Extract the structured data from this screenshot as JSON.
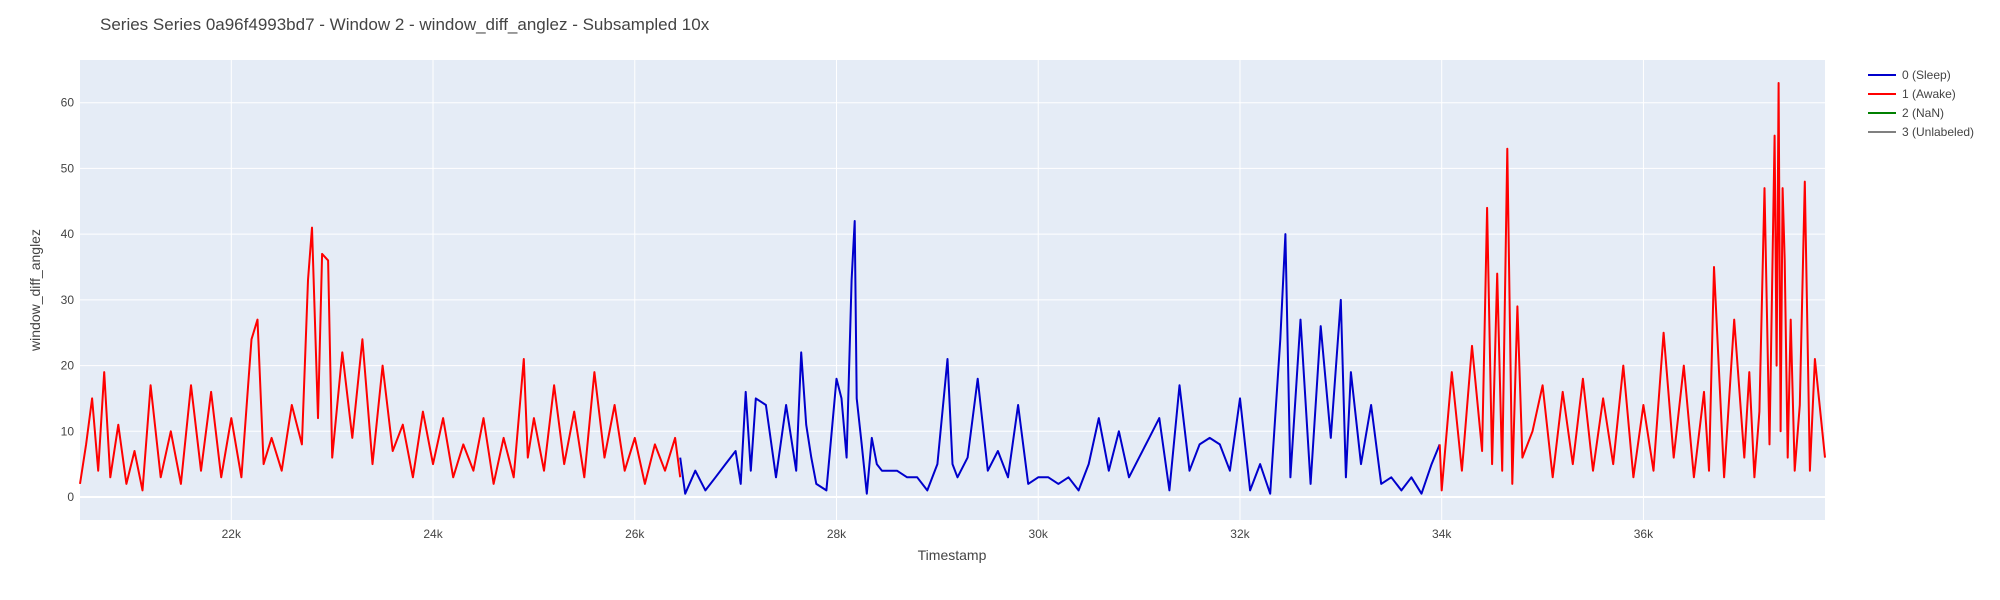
{
  "chart_data": {
    "type": "line",
    "title": "Series Series 0a96f4993bd7 - Window 2 - window_diff_anglez - Subsampled 10x",
    "xlabel": "Timestamp",
    "ylabel": "window_diff_anglez",
    "xlim": [
      20500,
      37800
    ],
    "ylim": [
      -3.5,
      66.5
    ],
    "x_ticks": [
      22000,
      24000,
      26000,
      28000,
      30000,
      32000,
      34000,
      36000
    ],
    "x_tick_labels": [
      "22k",
      "24k",
      "26k",
      "28k",
      "30k",
      "32k",
      "34k",
      "36k"
    ],
    "y_ticks": [
      0,
      10,
      20,
      30,
      40,
      50,
      60
    ],
    "y_tick_labels": [
      "0",
      "10",
      "20",
      "30",
      "40",
      "50",
      "60"
    ],
    "grid": true,
    "legend_position": "right",
    "legend": [
      {
        "name": "0 (Sleep)",
        "color": "#0000cc"
      },
      {
        "name": "1 (Awake)",
        "color": "#ff0000"
      },
      {
        "name": "2 (NaN)",
        "color": "#008000"
      },
      {
        "name": "3 (Unlabeled)",
        "color": "#808080"
      }
    ],
    "series": [
      {
        "name": "1 (Awake)",
        "color": "#ff0000",
        "x": [
          20500,
          20560,
          20620,
          20680,
          20740,
          20800,
          20880,
          20960,
          21040,
          21120,
          21200,
          21300,
          21400,
          21500,
          21600,
          21700,
          21800,
          21900,
          22000,
          22100,
          22200,
          22260,
          22320,
          22400,
          22500,
          22600,
          22700,
          22760,
          22800,
          22860,
          22900,
          22960,
          23000,
          23100,
          23200,
          23300,
          23400,
          23500,
          23600,
          23700,
          23800,
          23900,
          24000,
          24100,
          24200,
          24300,
          24400,
          24500,
          24600,
          24700,
          24800,
          24900,
          24940,
          25000,
          25100,
          25200,
          25300,
          25400,
          25500,
          25600,
          25700,
          25800,
          25900,
          26000,
          26100,
          26200,
          26300,
          26400,
          26450
        ],
        "y": [
          2,
          8,
          15,
          4,
          19,
          3,
          11,
          2,
          7,
          1,
          17,
          3,
          10,
          2,
          17,
          4,
          16,
          3,
          12,
          3,
          24,
          27,
          5,
          9,
          4,
          14,
          8,
          33,
          41,
          12,
          37,
          36,
          6,
          22,
          9,
          24,
          5,
          20,
          7,
          11,
          3,
          13,
          5,
          12,
          3,
          8,
          4,
          12,
          2,
          9,
          3,
          21,
          6,
          12,
          4,
          17,
          5,
          13,
          3,
          19,
          6,
          14,
          4,
          9,
          2,
          8,
          4,
          9,
          3
        ]
      },
      {
        "name": "0 (Sleep)",
        "color": "#0000cc",
        "x": [
          26450,
          26500,
          26600,
          26700,
          26800,
          26900,
          27000,
          27050,
          27100,
          27150,
          27200,
          27300,
          27400,
          27500,
          27600,
          27650,
          27700,
          27750,
          27800,
          27900,
          28000,
          28050,
          28100,
          28150,
          28180,
          28200,
          28250,
          28300,
          28350,
          28400,
          28450,
          28500,
          28600,
          28700,
          28800,
          28900,
          29000,
          29100,
          29150,
          29200,
          29300,
          29400,
          29500,
          29600,
          29700,
          29800,
          29900,
          30000,
          30100,
          30200,
          30300,
          30400,
          30500,
          30600,
          30700,
          30800,
          30900,
          31000,
          31100,
          31200,
          31300,
          31400,
          31500,
          31600,
          31700,
          31800,
          31900,
          32000,
          32100,
          32200,
          32300,
          32400,
          32450,
          32500,
          32600,
          32700,
          32800,
          32900,
          33000,
          33050,
          33100,
          33200,
          33300,
          33400,
          33500,
          33600,
          33700,
          33800,
          33900,
          33980
        ],
        "y": [
          6,
          0.5,
          4,
          1,
          3,
          5,
          7,
          2,
          16,
          4,
          15,
          14,
          3,
          14,
          4,
          22,
          11,
          6,
          2,
          1,
          18,
          15,
          6,
          33,
          42,
          15,
          8,
          0.5,
          9,
          5,
          4,
          4,
          4,
          3,
          3,
          1,
          5,
          21,
          5,
          3,
          6,
          18,
          4,
          7,
          3,
          14,
          2,
          3,
          3,
          2,
          3,
          1,
          5,
          12,
          4,
          10,
          3,
          6,
          9,
          12,
          1,
          17,
          4,
          8,
          9,
          8,
          4,
          15,
          1,
          5,
          0.5,
          24,
          40,
          3,
          27,
          2,
          26,
          9,
          30,
          3,
          19,
          5,
          14,
          2,
          3,
          1,
          3,
          0.5,
          5,
          8
        ]
      },
      {
        "name": "1 (Awake)",
        "color": "#ff0000",
        "x": [
          33980,
          34000,
          34100,
          34200,
          34300,
          34400,
          34450,
          34500,
          34550,
          34600,
          34650,
          34700,
          34750,
          34800,
          34900,
          35000,
          35100,
          35200,
          35300,
          35400,
          35500,
          35600,
          35700,
          35800,
          35900,
          36000,
          36100,
          36200,
          36300,
          36400,
          36500,
          36600,
          36650,
          36700,
          36800,
          36900,
          37000,
          37050,
          37100,
          37150,
          37200,
          37250,
          37300,
          37320,
          37340,
          37360,
          37380,
          37400,
          37430,
          37460,
          37500,
          37550,
          37600,
          37650,
          37700,
          37800
        ],
        "y": [
          8,
          1,
          19,
          4,
          23,
          7,
          44,
          5,
          34,
          4,
          53,
          2,
          29,
          6,
          10,
          17,
          3,
          16,
          5,
          18,
          4,
          15,
          5,
          20,
          3,
          14,
          4,
          25,
          6,
          20,
          3,
          16,
          4,
          35,
          3,
          27,
          6,
          19,
          3,
          13,
          47,
          8,
          55,
          20,
          63,
          10,
          47,
          36,
          6,
          27,
          4,
          14,
          48,
          4,
          21,
          6
        ]
      }
    ]
  }
}
